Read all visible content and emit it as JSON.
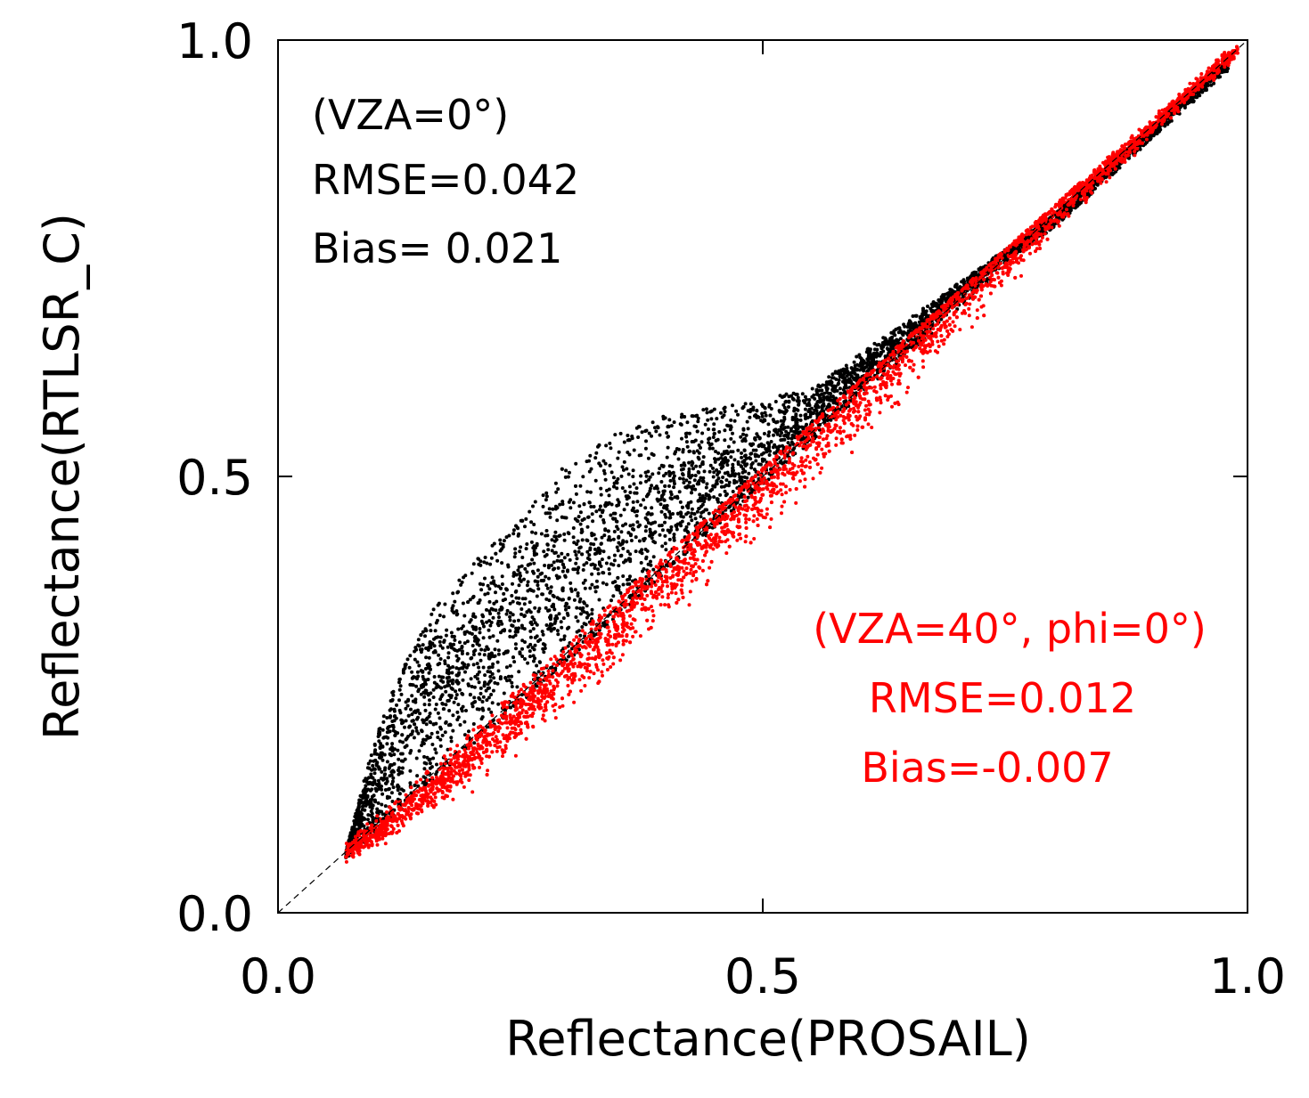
{
  "chart_data": {
    "type": "scatter",
    "xlabel": "Reflectance(PROSAIL)",
    "ylabel": "Reflectance(RTLSR_C)",
    "xlim": [
      0.0,
      1.0
    ],
    "ylim": [
      0.0,
      1.0
    ],
    "x_ticks": [
      "0.0",
      "0.5",
      "1.0"
    ],
    "y_ticks": [
      "0.0",
      "0.5",
      "1.0"
    ],
    "grid": false,
    "reference_line": {
      "style": "dashed",
      "from": [
        0,
        0
      ],
      "to": [
        1,
        1
      ]
    },
    "series": [
      {
        "color": "#000000",
        "annotation": [
          "(VZA=0°)",
          "RMSE=0.042",
          "Bias= 0.021"
        ],
        "rmse": 0.042,
        "bias": 0.021,
        "approx_x_range": [
          0.07,
          0.98
        ],
        "upper_envelope": [
          [
            0.07,
            0.07
          ],
          [
            0.1,
            0.2
          ],
          [
            0.12,
            0.26
          ],
          [
            0.16,
            0.35
          ],
          [
            0.2,
            0.4
          ],
          [
            0.25,
            0.45
          ],
          [
            0.3,
            0.52
          ],
          [
            0.35,
            0.55
          ],
          [
            0.4,
            0.57
          ],
          [
            0.45,
            0.58
          ],
          [
            0.5,
            0.59
          ],
          [
            0.55,
            0.6
          ],
          [
            0.6,
            0.64
          ],
          [
            0.65,
            0.68
          ],
          [
            0.7,
            0.72
          ],
          [
            0.75,
            0.76
          ],
          [
            0.8,
            0.8
          ],
          [
            0.85,
            0.85
          ],
          [
            0.9,
            0.9
          ],
          [
            0.95,
            0.95
          ],
          [
            0.98,
            0.98
          ]
        ],
        "centerline": [
          [
            0.07,
            0.07
          ],
          [
            0.1,
            0.15
          ],
          [
            0.15,
            0.24
          ],
          [
            0.2,
            0.3
          ],
          [
            0.25,
            0.34
          ],
          [
            0.3,
            0.38
          ],
          [
            0.35,
            0.42
          ],
          [
            0.4,
            0.46
          ],
          [
            0.45,
            0.5
          ],
          [
            0.5,
            0.53
          ],
          [
            0.55,
            0.57
          ],
          [
            0.6,
            0.62
          ],
          [
            0.65,
            0.66
          ],
          [
            0.7,
            0.71
          ],
          [
            0.75,
            0.76
          ],
          [
            0.8,
            0.81
          ],
          [
            0.85,
            0.85
          ],
          [
            0.9,
            0.9
          ],
          [
            0.95,
            0.95
          ],
          [
            0.98,
            0.98
          ]
        ]
      },
      {
        "color": "#ff0000",
        "annotation": [
          "(VZA=40°, phi=0°)",
          "RMSE=0.012",
          "Bias=-0.007"
        ],
        "rmse": 0.012,
        "bias": -0.007,
        "approx_x_range": [
          0.07,
          0.99
        ],
        "centerline": [
          [
            0.07,
            0.07
          ],
          [
            0.1,
            0.09
          ],
          [
            0.2,
            0.18
          ],
          [
            0.3,
            0.28
          ],
          [
            0.4,
            0.38
          ],
          [
            0.5,
            0.49
          ],
          [
            0.6,
            0.59
          ],
          [
            0.7,
            0.7
          ],
          [
            0.8,
            0.8
          ],
          [
            0.9,
            0.9
          ],
          [
            0.99,
            0.99
          ]
        ]
      }
    ]
  }
}
